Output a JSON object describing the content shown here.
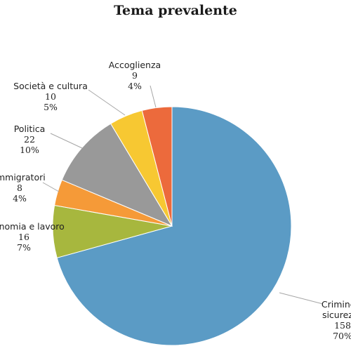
{
  "chart_data": {
    "type": "pie",
    "title": "Tema prevalente",
    "slices": [
      {
        "label": "Crimine e sicurezza",
        "label_lines": [
          "Crimine e",
          "sicurezza"
        ],
        "value_text": "158",
        "percent_text": "70%",
        "fraction": 0.7,
        "color": "#5b9bc5"
      },
      {
        "label": "Economia e lavoro",
        "label_lines": [
          "Economia e lavoro"
        ],
        "value_text": "16",
        "percent_text": "7%",
        "fraction": 0.07,
        "color": "#a7b73e"
      },
      {
        "label": "Immigratori",
        "label_lines": [
          "Immigratori"
        ],
        "value_text": "8",
        "percent_text": "4%",
        "fraction": 0.035,
        "color": "#f59a38"
      },
      {
        "label": "Politica",
        "label_lines": [
          "Politica"
        ],
        "value_text": "22",
        "percent_text": "10%",
        "fraction": 0.1,
        "color": "#999999"
      },
      {
        "label": "Società e cultura",
        "label_lines": [
          "Società e cultura"
        ],
        "value_text": "10",
        "percent_text": "5%",
        "fraction": 0.045,
        "color": "#f7c832"
      },
      {
        "label": "Accoglienza",
        "label_lines": [
          "Accoglienza"
        ],
        "value_text": "9",
        "percent_text": "4%",
        "fraction": 0.04,
        "color": "#ec6a3c"
      }
    ]
  }
}
